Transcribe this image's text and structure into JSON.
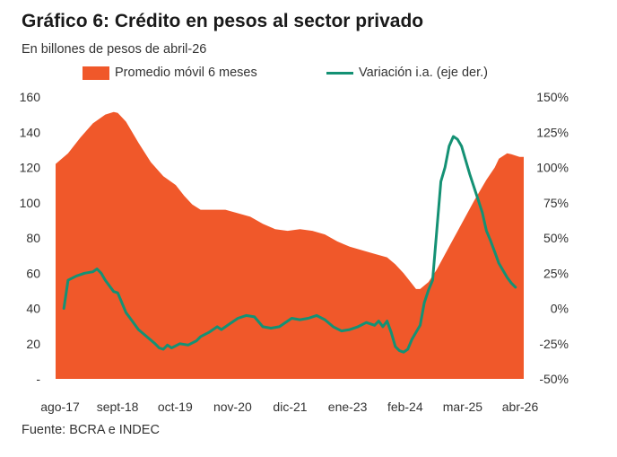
{
  "chart_data": {
    "type": "area",
    "title": "Gráfico 6: Crédito en pesos al sector privado",
    "subtitle": "En billones de pesos de abril-26",
    "source": "Fuente: BCRA  e INDEC",
    "x_tick_labels": [
      "ago-17",
      "sept-18",
      "oct-19",
      "nov-20",
      "dic-21",
      "ene-23",
      "feb-24",
      "mar-25",
      "abr-26"
    ],
    "y_left": {
      "ticks": [
        "-",
        "20",
        "40",
        "60",
        "80",
        "100",
        "120",
        "140",
        "160"
      ],
      "range": [
        0,
        160
      ]
    },
    "y_right": {
      "ticks": [
        "-50%",
        "-25%",
        "0%",
        "25%",
        "50%",
        "75%",
        "100%",
        "125%",
        "150%"
      ],
      "range": [
        -50,
        150
      ]
    },
    "legend_placement": "top",
    "grid": false,
    "series": [
      {
        "name": "Promedio móvil 6 meses",
        "type": "area",
        "axis": "left",
        "color": "#f0582a",
        "points": [
          [
            0,
            122
          ],
          [
            3,
            128
          ],
          [
            6,
            137
          ],
          [
            9,
            145
          ],
          [
            12,
            150
          ],
          [
            14,
            151.5
          ],
          [
            15,
            151
          ],
          [
            17,
            146
          ],
          [
            20,
            134
          ],
          [
            23,
            123
          ],
          [
            26,
            115
          ],
          [
            29,
            110
          ],
          [
            31,
            104
          ],
          [
            33,
            99
          ],
          [
            35,
            96
          ],
          [
            38,
            96
          ],
          [
            41,
            96
          ],
          [
            44,
            94
          ],
          [
            47,
            92
          ],
          [
            50,
            88
          ],
          [
            53,
            85
          ],
          [
            56,
            84
          ],
          [
            59,
            85
          ],
          [
            62,
            84
          ],
          [
            65,
            82
          ],
          [
            68,
            78
          ],
          [
            71,
            75
          ],
          [
            74,
            73
          ],
          [
            77,
            71
          ],
          [
            80,
            69
          ],
          [
            82,
            65
          ],
          [
            84,
            60
          ],
          [
            86,
            54
          ],
          [
            87,
            51
          ],
          [
            88,
            51
          ],
          [
            90,
            55
          ],
          [
            92,
            62
          ],
          [
            95,
            75
          ],
          [
            98,
            88
          ],
          [
            101,
            101
          ],
          [
            104,
            113
          ],
          [
            106,
            120
          ],
          [
            107,
            125
          ],
          [
            108,
            126.5
          ],
          [
            109,
            128
          ],
          [
            110,
            127.5
          ],
          [
            112,
            126
          ],
          [
            113,
            126
          ]
        ]
      },
      {
        "name": "Variación i.a. (eje der.)",
        "type": "line",
        "axis": "right",
        "color": "#149174",
        "points": [
          [
            2,
            0
          ],
          [
            3,
            20
          ],
          [
            5,
            23
          ],
          [
            7,
            25
          ],
          [
            9,
            26
          ],
          [
            10,
            28
          ],
          [
            11,
            25
          ],
          [
            12,
            20
          ],
          [
            14,
            12
          ],
          [
            15,
            11
          ],
          [
            17,
            -3
          ],
          [
            18,
            -7
          ],
          [
            20,
            -15
          ],
          [
            22,
            -20
          ],
          [
            24,
            -25
          ],
          [
            25,
            -28
          ],
          [
            26,
            -29
          ],
          [
            27,
            -26
          ],
          [
            28,
            -28
          ],
          [
            30,
            -25
          ],
          [
            32,
            -26
          ],
          [
            34,
            -23
          ],
          [
            35,
            -20
          ],
          [
            37,
            -17
          ],
          [
            39,
            -13
          ],
          [
            40,
            -15
          ],
          [
            42,
            -11
          ],
          [
            44,
            -7
          ],
          [
            46,
            -5
          ],
          [
            48,
            -6
          ],
          [
            50,
            -13
          ],
          [
            52,
            -14
          ],
          [
            54,
            -13
          ],
          [
            56,
            -9
          ],
          [
            57,
            -7
          ],
          [
            59,
            -8
          ],
          [
            61,
            -7
          ],
          [
            63,
            -5
          ],
          [
            65,
            -8
          ],
          [
            67,
            -13
          ],
          [
            69,
            -16
          ],
          [
            71,
            -15
          ],
          [
            73,
            -13
          ],
          [
            75,
            -10
          ],
          [
            77,
            -12
          ],
          [
            78,
            -9
          ],
          [
            79,
            -13
          ],
          [
            80,
            -9
          ],
          [
            81,
            -17
          ],
          [
            82,
            -27
          ],
          [
            83,
            -30
          ],
          [
            84,
            -31
          ],
          [
            85,
            -29
          ],
          [
            86,
            -22
          ],
          [
            88,
            -12
          ],
          [
            89,
            4
          ],
          [
            90,
            13
          ],
          [
            91,
            20
          ],
          [
            92,
            55
          ],
          [
            93,
            90
          ],
          [
            94,
            100
          ],
          [
            95,
            115
          ],
          [
            96,
            122
          ],
          [
            97,
            120
          ],
          [
            98,
            115
          ],
          [
            99,
            105
          ],
          [
            100,
            95
          ],
          [
            102,
            77
          ],
          [
            103,
            68
          ],
          [
            104,
            55
          ],
          [
            105,
            48
          ],
          [
            106,
            40
          ],
          [
            107,
            32
          ],
          [
            108,
            27
          ],
          [
            109,
            22
          ],
          [
            110,
            18
          ],
          [
            111,
            15
          ]
        ]
      }
    ]
  }
}
